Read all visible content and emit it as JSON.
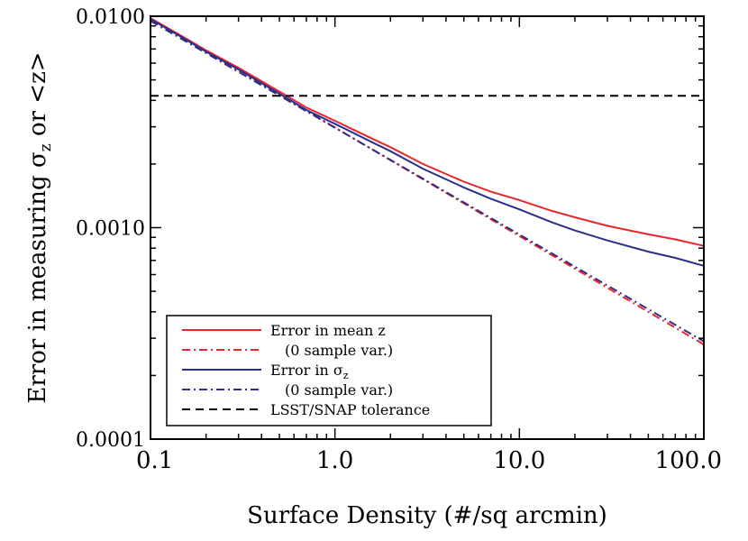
{
  "chart_data": {
    "type": "line",
    "title": "",
    "xlabel": "Surface Density (#/sq arcmin)",
    "ylabel": {
      "main": "Error in measuring σ",
      "sub": "z",
      "tail": " or <z>"
    },
    "x_scale": "log",
    "y_scale": "log",
    "xlim": [
      0.1,
      100.0
    ],
    "ylim": [
      0.0001,
      0.01
    ],
    "x_ticks": [
      {
        "value": 0.1,
        "label": "0.1"
      },
      {
        "value": 1.0,
        "label": "1.0"
      },
      {
        "value": 10.0,
        "label": "10.0"
      },
      {
        "value": 100.0,
        "label": "100.0"
      }
    ],
    "y_ticks": [
      {
        "value": 0.0001,
        "label": "0.0001"
      },
      {
        "value": 0.001,
        "label": "0.0010"
      },
      {
        "value": 0.01,
        "label": "0.0100"
      }
    ],
    "grid": false,
    "legend_position": "bottom-left",
    "series": [
      {
        "key": "mean-z",
        "name": "Error in mean z",
        "color": "#e8262b",
        "style": "solid",
        "x": [
          0.1,
          0.15,
          0.2,
          0.3,
          0.5,
          0.7,
          1.0,
          1.5,
          2.0,
          3.0,
          5.0,
          7.0,
          10.0,
          15.0,
          20.0,
          30.0,
          50.0,
          70.0,
          100.0
        ],
        "y": [
          0.0098,
          0.008,
          0.0069,
          0.0057,
          0.0044,
          0.0037,
          0.0032,
          0.0027,
          0.0024,
          0.002,
          0.00165,
          0.00148,
          0.00135,
          0.0012,
          0.00112,
          0.00102,
          0.00093,
          0.00088,
          0.00082
        ]
      },
      {
        "key": "mean-z-nsv",
        "name": "(0 sample var.)",
        "color": "#e8262b",
        "style": "dashdot",
        "x": [
          0.1,
          100.0
        ],
        "y": [
          0.0097,
          0.00028
        ]
      },
      {
        "key": "sigma-z",
        "name": "Error in σ",
        "name_sub": "z",
        "color": "#2b2f8a",
        "style": "solid",
        "x": [
          0.1,
          0.15,
          0.2,
          0.3,
          0.5,
          0.7,
          1.0,
          1.5,
          2.0,
          3.0,
          5.0,
          7.0,
          10.0,
          15.0,
          20.0,
          30.0,
          50.0,
          70.0,
          100.0
        ],
        "y": [
          0.0097,
          0.0079,
          0.0068,
          0.0056,
          0.0043,
          0.0036,
          0.0031,
          0.0026,
          0.0023,
          0.0019,
          0.00155,
          0.00137,
          0.00122,
          0.00106,
          0.00097,
          0.00087,
          0.00077,
          0.00072,
          0.00066
        ]
      },
      {
        "key": "sigma-z-nsv",
        "name": "(0 sample var.)",
        "color": "#2b2f8a",
        "style": "dashdot",
        "x": [
          0.1,
          100.0
        ],
        "y": [
          0.0095,
          0.00029
        ]
      },
      {
        "key": "tolerance",
        "name": "LSST/SNAP tolerance",
        "color": "#000000",
        "style": "dashed",
        "x": [
          0.1,
          100.0
        ],
        "y": [
          0.0042,
          0.0042
        ]
      }
    ]
  }
}
